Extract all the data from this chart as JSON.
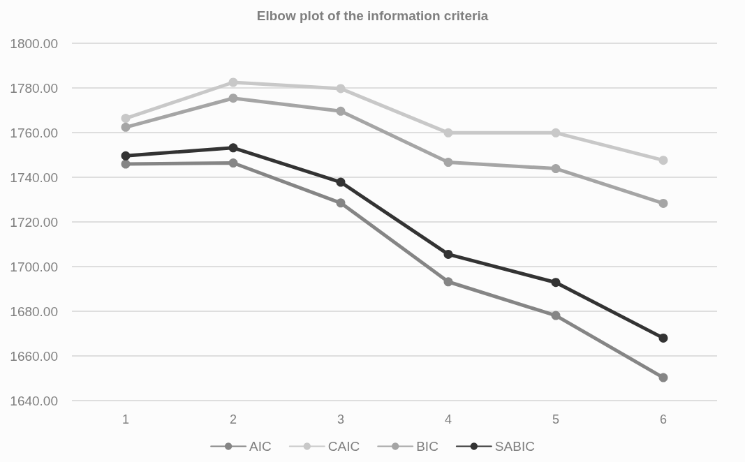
{
  "chart_data": {
    "type": "line",
    "title": "Elbow plot of the information criteria",
    "categories": [
      "1",
      "2",
      "3",
      "4",
      "5",
      "6"
    ],
    "series": [
      {
        "name": "AIC",
        "color": "#858585",
        "values": [
          1745.9,
          1746.4,
          1728.5,
          1693.2,
          1678.1,
          1650.3
        ]
      },
      {
        "name": "CAIC",
        "color": "#c8c8c8",
        "values": [
          1766.4,
          1782.5,
          1779.7,
          1759.9,
          1759.9,
          1747.6
        ]
      },
      {
        "name": "BIC",
        "color": "#a5a5a5",
        "values": [
          1762.4,
          1775.4,
          1769.6,
          1746.7,
          1743.9,
          1728.3
        ]
      },
      {
        "name": "SABIC",
        "color": "#333333",
        "values": [
          1749.6,
          1753.2,
          1737.8,
          1705.5,
          1692.9,
          1668.0
        ]
      }
    ],
    "ylim": [
      1640,
      1800
    ],
    "yticks": [
      {
        "value": 1640,
        "label": "1640.00"
      },
      {
        "value": 1660,
        "label": "1660.00"
      },
      {
        "value": 1680,
        "label": "1680.00"
      },
      {
        "value": 1700,
        "label": "1700.00"
      },
      {
        "value": 1720,
        "label": "1720.00"
      },
      {
        "value": 1740,
        "label": "1740.00"
      },
      {
        "value": 1760,
        "label": "1760.00"
      },
      {
        "value": 1780,
        "label": "1780.00"
      },
      {
        "value": 1800,
        "label": "1800.00"
      }
    ],
    "grid": "y",
    "legend": "bottom",
    "marker": "circle",
    "line_style": "solid"
  }
}
